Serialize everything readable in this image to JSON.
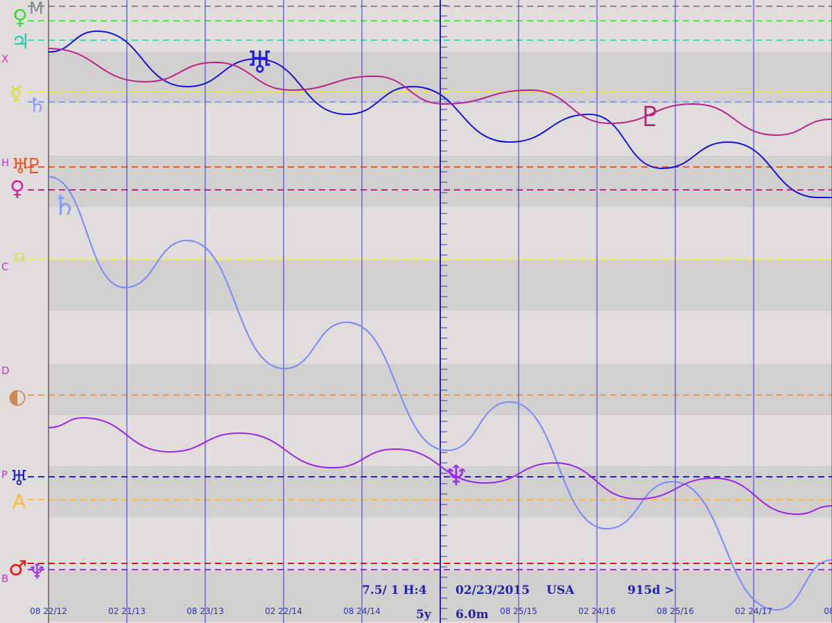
{
  "top_letter": "M",
  "left_labels": [
    "X",
    "H",
    "C",
    "D",
    "P",
    "B"
  ],
  "glyphs": [
    "♀",
    "♃",
    "☿",
    "♄",
    "♅",
    "♀",
    "♇",
    "☊",
    "◐",
    "♅",
    "A",
    "♂",
    "♆",
    "♅",
    "♄",
    "♇",
    "♆"
  ],
  "dates": [
    "08 22/12",
    "02 21/13",
    "08 23/13",
    "02 22/14",
    "08 24/14",
    "08 25/15",
    "02 24/16",
    "08 25/16",
    "02 24/17",
    "08"
  ],
  "status": {
    "ratio": "7.5/ 1 H:4",
    "span": "5y",
    "date": "02/23/2015",
    "location": "USA",
    "orb": "6.0m",
    "days": "915d >"
  }
}
